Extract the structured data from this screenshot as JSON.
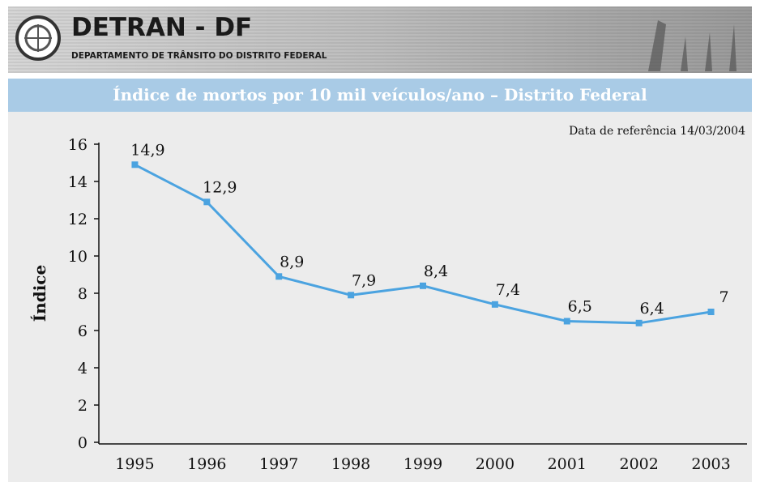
{
  "header": {
    "title": "DETRAN - DF",
    "subtitle": "DEPARTAMENTO DE TRÂNSITO DO DISTRITO FEDERAL"
  },
  "chart_data": {
    "type": "line",
    "title": "Índice de mortos por 10 mil veículos/ano – Distrito Federal",
    "annotation": "Data de referência 14/03/2004",
    "ylabel": "Índice",
    "categories": [
      "1995",
      "1996",
      "1997",
      "1998",
      "1999",
      "2000",
      "2001",
      "2002",
      "2003"
    ],
    "series": [
      {
        "name": "Índice",
        "color": "#4ba3e0",
        "values": [
          14.9,
          12.9,
          8.9,
          7.9,
          8.4,
          7.4,
          6.5,
          6.4,
          7
        ],
        "value_labels": [
          "14,9",
          "12,9",
          "8,9",
          "7,9",
          "8,4",
          "7,4",
          "6,5",
          "6,4",
          "7"
        ]
      }
    ],
    "ylim": [
      0,
      16
    ],
    "yticks": [
      0,
      2,
      4,
      6,
      8,
      10,
      12,
      14,
      16
    ],
    "grid": false
  }
}
